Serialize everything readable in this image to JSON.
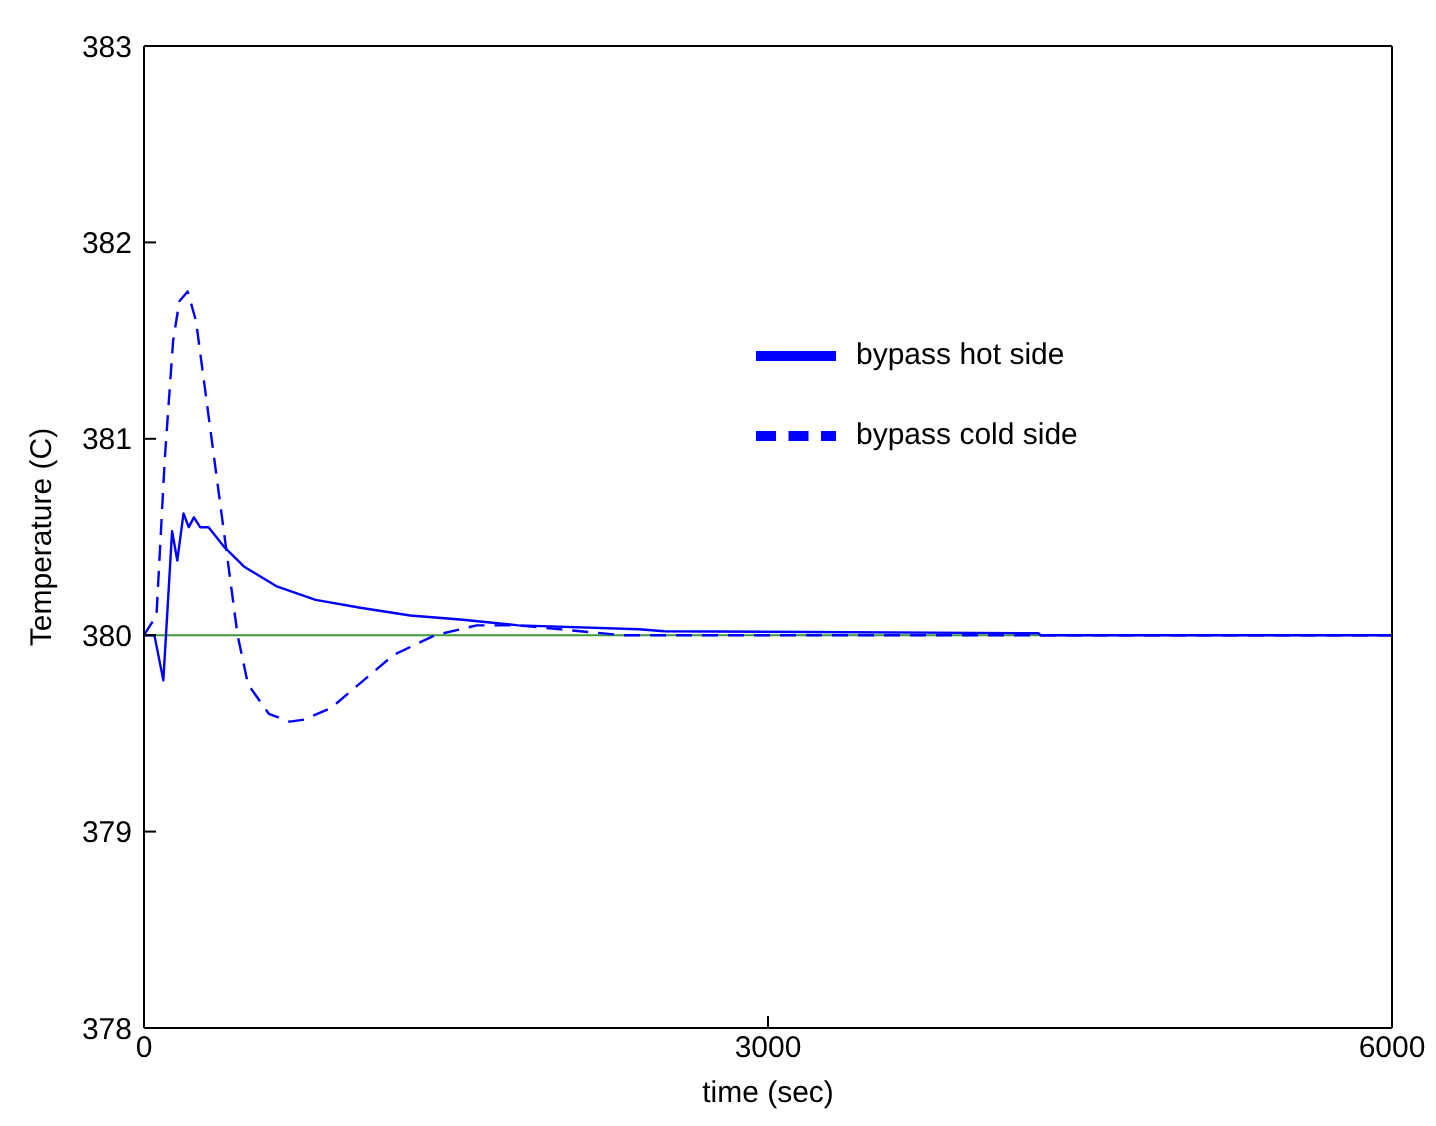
{
  "chart_data": {
    "type": "line",
    "xlabel": "time (sec)",
    "ylabel": "Temperature (C)",
    "xlim": [
      0,
      6000
    ],
    "xticks": [
      0,
      3000,
      6000
    ],
    "ylim": [
      378,
      383
    ],
    "yticks": [
      378,
      379,
      380,
      381,
      382,
      383
    ],
    "grid": false,
    "legend": "top right",
    "marker": "none",
    "ref_lines": [
      {
        "axis": "y",
        "value": 380,
        "color": "#3c9c3c"
      }
    ],
    "series": [
      {
        "name": "bypass hot side",
        "color": "#0000ff",
        "line_style": "solid",
        "x": [
          0,
          50,
          93,
          135,
          160,
          190,
          215,
          240,
          270,
          310,
          385,
          480,
          635,
          825,
          1040,
          1280,
          1520,
          1800,
          2380,
          2500,
          4300,
          4310,
          6000
        ],
        "values": [
          380,
          380,
          379.77,
          380.53,
          380.38,
          380.62,
          380.55,
          380.6,
          380.55,
          380.55,
          380.45,
          380.35,
          380.25,
          380.18,
          380.14,
          380.1,
          380.08,
          380.05,
          380.03,
          380.02,
          380.01,
          380,
          380
        ]
      },
      {
        "name": "bypass cold side",
        "color": "#0000ff",
        "line_style": "dashed",
        "x": [
          0,
          60,
          100,
          140,
          170,
          210,
          250,
          300,
          350,
          400,
          450,
          500,
          600,
          700,
          770,
          900,
          1000,
          1200,
          1400,
          1600,
          1800,
          2000,
          2300,
          6000
        ],
        "values": [
          380,
          380.1,
          380.9,
          381.5,
          381.7,
          381.75,
          381.6,
          381.2,
          380.8,
          380.4,
          380,
          379.75,
          379.6,
          379.56,
          379.57,
          379.63,
          379.72,
          379.9,
          380,
          380.05,
          380.05,
          380.03,
          380,
          380
        ]
      }
    ]
  }
}
